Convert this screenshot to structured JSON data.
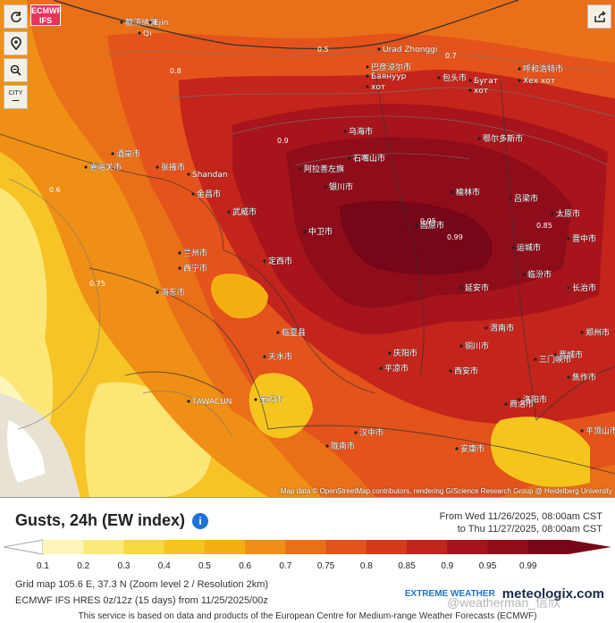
{
  "map": {
    "brand_badge": [
      "ECMWF",
      "IFS"
    ],
    "tools": [
      {
        "name": "refresh-icon"
      },
      {
        "name": "location-pin-icon"
      },
      {
        "name": "zoom-icon"
      },
      {
        "name": "city-toggle",
        "label": "CITY"
      }
    ],
    "share": "share-icon",
    "attribution": "Map data © OpenStreetMap contributors, rendering GIScience Research Group @ Heidelberg University",
    "place_labels": [
      "额济纳旗",
      "Ejin",
      "Qi",
      "Urad Zhonggi",
      "巴彦淖尔市",
      "Баянуур",
      "хот",
      "包头市",
      "Бугат",
      "хот",
      "呼和浩特市",
      "Хех хот",
      "石嘴山市",
      "银川市",
      "中卫市",
      "固原市",
      "兰州市",
      "西宁市",
      "西安市",
      "延安市",
      "太原市",
      "宝鸡市",
      "天水市",
      "平凉市",
      "庆阳市",
      "榆林市",
      "鄂尔多斯市",
      "乌海市",
      "阿拉善左旗",
      "Shandan",
      "TAWACUN",
      "临夏县",
      "海东市",
      "汉中市",
      "安康市",
      "商洛市",
      "渭南市",
      "铜川市",
      "三门峡市",
      "洛阳市",
      "运城市",
      "临汾市",
      "吕梁市",
      "晋中市",
      "长治市",
      "晋城市",
      "郑州市",
      "焦作市",
      "平顶山市",
      "武威市",
      "金昌市",
      "张掖市",
      "酒泉市",
      "嘉峪关市",
      "定西市",
      "陇南市"
    ],
    "contour_labels": [
      "0.5",
      "0.7",
      "0.8",
      "0.9",
      "0.95",
      "0.99",
      "0.6",
      "0.75",
      "0.85"
    ]
  },
  "legend": {
    "title": "Gusts, 24h (EW index)",
    "info_icon": "info-icon",
    "from_label": "From Wed 11/26/2025, 08:00am CST",
    "to_label": "to Thu 11/27/2025, 08:00am CST",
    "scale_ticks": [
      "0.1",
      "0.2",
      "0.3",
      "0.4",
      "0.5",
      "0.6",
      "0.7",
      "0.75",
      "0.8",
      "0.85",
      "0.9",
      "0.95",
      "0.99"
    ],
    "scale_colors": [
      "#fdf6b8",
      "#fbe97a",
      "#f7d742",
      "#f5c51e",
      "#f4ae14",
      "#ef8f15",
      "#ea6f19",
      "#e3531b",
      "#d63a1b",
      "#c3241b",
      "#a8141c",
      "#8f0c1a",
      "#760618"
    ]
  },
  "footer": {
    "grid_info": "Grid map 105.6 E, 37.3 N (Zoom level 2 / Resolution 2km)",
    "model_info": "ECMWF IFS HRES 0z/12z (15 days) from 11/25/2025/00z",
    "ew_logo": "EXTREME WEATHER",
    "mlx_logo": "meteologix.com",
    "watermark": "@weatherman_信欣",
    "disclaimer": "This service is based on data and products of the European Centre for Medium-range Weather Forecasts (ECMWF)"
  }
}
